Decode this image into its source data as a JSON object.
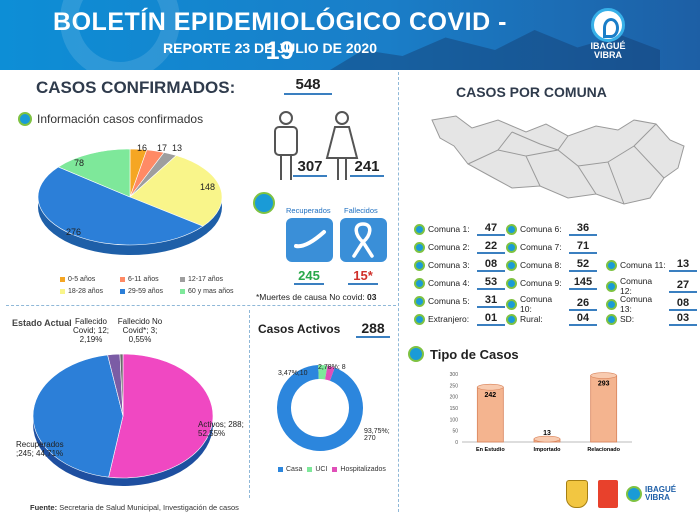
{
  "header": {
    "title": "BOLETÍN EPIDEMIOLÓGICO COVID - 19",
    "subtitle": "REPORTE 23 DE JULIO DE 2020",
    "logo_line1": "IBAGUÉ",
    "logo_line2": "VIBRA"
  },
  "confirmed": {
    "title": "CASOS CONFIRMADOS:",
    "total": "548",
    "info_title": "Información casos confirmados",
    "men": "307",
    "women": "241",
    "pie_labels": [
      "16",
      "17",
      "13",
      "148",
      "276",
      "78"
    ],
    "legend": [
      "0-5 años",
      "6-11 años",
      "12-17 años",
      "18-28 años",
      "29-59 años",
      "60 y mas años"
    ],
    "colors": [
      "#f5a623",
      "#ff8a65",
      "#9e9e9e",
      "#f9f58a",
      "#2c7fd8",
      "#7ee89a"
    ]
  },
  "outcomes": {
    "recovered_label": "Recuperados",
    "deceased_label": "Fallecidos",
    "recovered": "245",
    "deceased": "15*",
    "note_prefix": "*Muertes de causa No covid:",
    "note_value": "03"
  },
  "estado": {
    "title": "Estado Actual",
    "fallecido_covid": "Fallecido Covid; 12; 2,19%",
    "fallecido_no_covid": "Fallecido No Covid*; 3; 0,55%",
    "activos": "Activos; 288; 52,55%",
    "recuperados": "Recuperados ;245; 44,71%"
  },
  "activos": {
    "title": "Casos Activos",
    "total": "288",
    "label_uci": "3,47%;10",
    "label_hosp": "2,78%; 8",
    "label_casa": "93,75%; 270",
    "legend": [
      "Casa",
      "UCI",
      "Hospitalizados"
    ]
  },
  "comuna": {
    "title": "CASOS POR COMUNA",
    "items": [
      {
        "label": "Comuna 1:",
        "value": "47"
      },
      {
        "label": "Comuna 2:",
        "value": "22"
      },
      {
        "label": "Comuna 3:",
        "value": "08"
      },
      {
        "label": "Comuna 4:",
        "value": "53"
      },
      {
        "label": "Comuna 5:",
        "value": "31"
      },
      {
        "label": "Extranjero:",
        "value": "01"
      },
      {
        "label": "Comuna 6:",
        "value": "36"
      },
      {
        "label": "Comuna 7:",
        "value": "71"
      },
      {
        "label": "Comuna 8:",
        "value": "52"
      },
      {
        "label": "Comuna 9:",
        "value": "145"
      },
      {
        "label": "Comuna 10:",
        "value": "26"
      },
      {
        "label": "Rural:",
        "value": "04"
      },
      {
        "label": "Comuna 11:",
        "value": "13"
      },
      {
        "label": "Comuna 12:",
        "value": "27"
      },
      {
        "label": "Comuna 13:",
        "value": "08"
      },
      {
        "label": "SD:",
        "value": "03"
      }
    ]
  },
  "tipo": {
    "title": "Tipo de Casos",
    "categories": [
      "En Estudio",
      "Importado",
      "Relacionado"
    ],
    "values": [
      242,
      13,
      293
    ],
    "yticks": [
      "300",
      "250",
      "200",
      "150",
      "100",
      "50",
      "0"
    ]
  },
  "footer": {
    "label": "Fuente:",
    "text": "Secretaria de Salud Municipal, Investigación de casos"
  },
  "chart_data": {
    "type": "bar",
    "title": "Tipo de Casos",
    "categories": [
      "En Estudio",
      "Importado",
      "Relacionado"
    ],
    "values": [
      242,
      13,
      293
    ],
    "ylim": [
      0,
      300
    ]
  }
}
